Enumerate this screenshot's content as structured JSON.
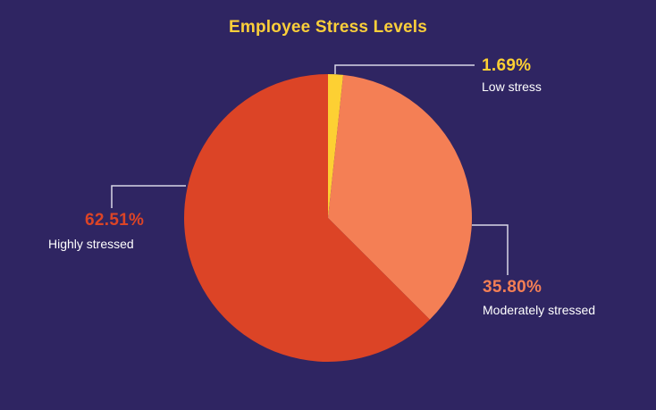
{
  "chart_data": {
    "type": "pie",
    "title": "Employee Stress Levels",
    "categories": [
      "Low stress",
      "Moderately stressed",
      "Highly stressed"
    ],
    "values": [
      1.69,
      35.8,
      62.51
    ],
    "value_labels": [
      "1.69%",
      "35.80%",
      "62.51%"
    ],
    "colors": [
      "#fdd033",
      "#f47f55",
      "#dc4426"
    ],
    "start_angle_deg": 0,
    "direction": "clockwise",
    "legend": "none (callout labels)"
  },
  "colors": {
    "background": "#2f2562",
    "title": "#fbcf3a",
    "label_text": "#ffffff",
    "leader_line": "#d8d6e6"
  },
  "labels": {
    "low": {
      "pct": "1.69%",
      "name": "Low stress",
      "color": "#fdd033"
    },
    "moderate": {
      "pct": "35.80%",
      "name": "Moderately stressed",
      "color": "#f47f55"
    },
    "high": {
      "pct": "62.51%",
      "name": "Highly stressed",
      "color": "#dc4426"
    }
  }
}
